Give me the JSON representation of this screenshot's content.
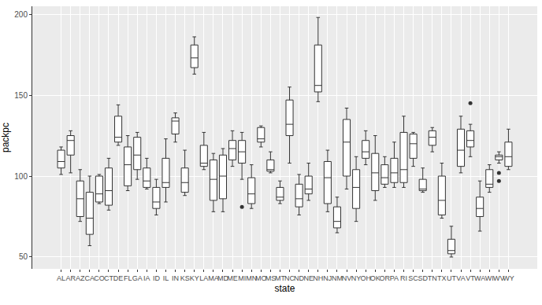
{
  "chart_data": {
    "type": "box",
    "x_label": "state",
    "y_label": "packpc",
    "categories": [
      "AL",
      "AR",
      "AZ",
      "CA",
      "CO",
      "CT",
      "DE",
      "FL",
      "GA",
      "IA",
      "ID",
      "IL",
      "IN",
      "KS",
      "KY",
      "LA",
      "MA",
      "MD",
      "ME",
      "MI",
      "MN",
      "MO",
      "MS",
      "MT",
      "NC",
      "ND",
      "NE",
      "NH",
      "NJ",
      "NM",
      "NV",
      "NY",
      "OH",
      "OK",
      "OR",
      "PA",
      "RI",
      "SC",
      "SD",
      "TN",
      "TX",
      "UT",
      "VA",
      "VT",
      "WA",
      "WI",
      "WV",
      "WY"
    ],
    "lower": [
      101,
      102,
      72,
      57,
      83,
      79,
      119,
      91,
      98,
      92,
      76,
      84,
      121,
      88,
      163,
      104,
      78,
      78,
      106,
      98,
      80,
      118,
      102,
      83,
      108,
      76,
      85,
      146,
      78,
      65,
      92,
      72,
      107,
      85,
      93,
      93,
      93,
      106,
      90,
      115,
      74,
      50,
      102,
      112,
      66,
      90,
      108,
      104
    ],
    "q1": [
      105,
      113,
      75,
      64,
      84,
      82,
      121,
      94,
      104,
      93,
      80,
      93,
      126,
      90,
      167,
      106,
      85,
      86,
      110,
      108,
      83,
      121,
      103,
      85,
      125,
      81,
      89,
      152,
      83,
      68,
      100,
      80,
      111,
      91,
      95,
      96,
      96,
      111,
      91,
      119,
      76,
      52,
      106,
      118,
      75,
      93,
      110,
      106
    ],
    "median": [
      109,
      122,
      86,
      74,
      89,
      91,
      124,
      107,
      113,
      97,
      84,
      96,
      134,
      96,
      173,
      108,
      98,
      100,
      117,
      115,
      89,
      123,
      104,
      87,
      132,
      86,
      92,
      156,
      99,
      72,
      121,
      93,
      115,
      102,
      99,
      102,
      104,
      120,
      92,
      124,
      85,
      54,
      116,
      122,
      80,
      95,
      112,
      112
    ],
    "q3": [
      116,
      125,
      97,
      90,
      100,
      105,
      137,
      118,
      124,
      105,
      93,
      111,
      136,
      105,
      181,
      119,
      110,
      113,
      122,
      122,
      99,
      130,
      110,
      93,
      147,
      95,
      100,
      181,
      109,
      81,
      135,
      104,
      122,
      114,
      107,
      111,
      127,
      126,
      98,
      128,
      100,
      61,
      129,
      128,
      87,
      104,
      113,
      121
    ],
    "upper": [
      118,
      128,
      104,
      100,
      101,
      111,
      144,
      125,
      127,
      111,
      98,
      123,
      139,
      116,
      186,
      127,
      114,
      117,
      128,
      127,
      107,
      131,
      115,
      97,
      155,
      101,
      108,
      198,
      116,
      87,
      142,
      112,
      128,
      125,
      112,
      121,
      137,
      127,
      105,
      130,
      108,
      69,
      137,
      132,
      97,
      107,
      115,
      129
    ],
    "outliers": [
      [],
      [],
      [],
      [],
      [],
      [],
      [],
      [],
      [],
      [],
      [],
      [],
      [],
      [],
      [],
      [],
      [],
      [],
      [],
      [
        81
      ],
      [],
      [],
      [],
      [],
      [],
      [],
      [],
      [],
      [],
      [],
      [],
      [],
      [],
      [],
      [],
      [],
      [],
      [],
      [],
      [],
      [],
      [],
      [],
      [
        145
      ],
      [],
      [],
      [
        102,
        97
      ],
      []
    ],
    "ylim": [
      42.7,
      204.9
    ],
    "yticks": [
      50,
      100,
      150,
      200
    ],
    "grid": true,
    "color": "#ffffff"
  }
}
